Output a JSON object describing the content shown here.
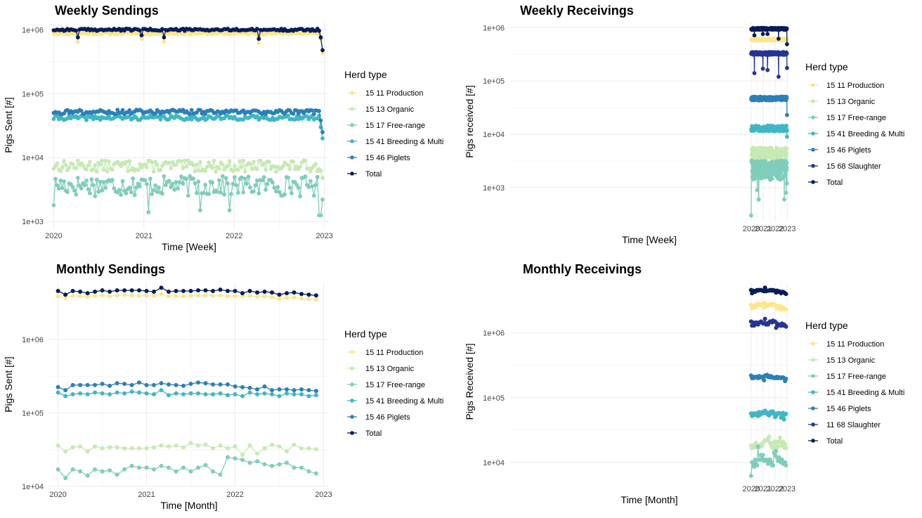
{
  "colors": {
    "15 11 Production": "#fce68a",
    "15 13 Organic": "#c7e9b4",
    "15 17 Free-range": "#7fcdbb",
    "15 41 Breeding & Multi": "#41b6c4",
    "15 46 Piglets": "#2c7fb8",
    "15 68 Slaughter": "#253494",
    "11 68 Slaughter": "#253494",
    "Total": "#081d58"
  },
  "chart_data": [
    {
      "type": "line",
      "title": "Weekly Sendings",
      "xlabel": "Time [Week]",
      "ylabel": "Pigs Sent [#]",
      "log_y": true,
      "ylim": [
        800,
        1300000
      ],
      "yticks": [
        1000,
        10000,
        100000,
        1000000
      ],
      "ytick_labels": [
        "1e+03",
        "1e+04",
        "1e+05",
        "1e+06"
      ],
      "xlim": [
        2019.95,
        2023.05
      ],
      "xticks": [
        2020,
        2021,
        2022,
        2023
      ],
      "xtick_labels": [
        "2020",
        "2021",
        "2022",
        "2023"
      ],
      "x_start": 2020.0,
      "x_end": 2022.98,
      "n_points": 157,
      "legend_title": "Herd type",
      "legend_position": "right",
      "series": [
        {
          "name": "15 11 Production",
          "level": 880000,
          "spread": 0.04,
          "dips": [
            [
              2020.27,
              650000
            ],
            [
              2020.98,
              720000
            ],
            [
              2021.23,
              650000
            ],
            [
              2022.27,
              620000
            ]
          ],
          "end": [
            [
              2022.96,
              720000
            ],
            [
              2022.98,
              430000
            ]
          ],
          "seed": 11
        },
        {
          "name": "15 13 Organic",
          "level": 7500,
          "spread": 0.2,
          "dips": [],
          "end": [
            [
              2022.98,
              4800
            ]
          ],
          "seed": 13
        },
        {
          "name": "15 17 Free-range",
          "level": 3800,
          "spread": 0.35,
          "dips": [
            [
              2020.0,
              1800
            ],
            [
              2021.05,
              1400
            ],
            [
              2021.62,
              1500
            ],
            [
              2021.95,
              1500
            ],
            [
              2022.95,
              1250
            ]
          ],
          "end": [
            [
              2022.98,
              2200
            ]
          ],
          "seed": 17
        },
        {
          "name": "15 41 Breeding & Multi",
          "level": 42000,
          "spread": 0.08,
          "dips": [],
          "end": [
            [
              2022.96,
              30000
            ],
            [
              2022.98,
              20000
            ]
          ],
          "seed": 41
        },
        {
          "name": "15 46 Piglets",
          "level": 52000,
          "spread": 0.08,
          "dips": [],
          "end": [
            [
              2022.96,
              38000
            ],
            [
              2022.98,
              25000
            ]
          ],
          "seed": 46
        },
        {
          "name": "Total",
          "level": 1000000,
          "spread": 0.04,
          "dips": [
            [
              2020.27,
              760000
            ],
            [
              2020.98,
              820000
            ],
            [
              2021.23,
              760000
            ],
            [
              2022.27,
              720000
            ]
          ],
          "end": [
            [
              2022.96,
              760000
            ],
            [
              2022.98,
              480000
            ]
          ],
          "seed": 99
        }
      ]
    },
    {
      "type": "line",
      "title": "Weekly Receivings",
      "xlabel": "Time [Week]",
      "ylabel": "Pigs received [#]",
      "log_y": true,
      "ylim": [
        240,
        1250000
      ],
      "yticks": [
        1000,
        10000,
        100000,
        1000000
      ],
      "ytick_labels": [
        "1e+03",
        "1e+04",
        "1e+05",
        "1e+06"
      ],
      "xlim": [
        1999.95,
        2023.1
      ],
      "xticks": [
        2020,
        2021,
        2022,
        2023
      ],
      "xtick_labels": [
        "2020",
        "2021",
        "2022",
        "2023"
      ],
      "x_start": 2020.0,
      "x_end": 2022.98,
      "n_points": 157,
      "legend_title": "Herd type",
      "legend_position": "right",
      "series": [
        {
          "name": "15 11 Production",
          "level": 600000,
          "spread": 0.04,
          "dips": [],
          "end": [
            [
              2022.98,
              330000
            ]
          ],
          "seed": 111
        },
        {
          "name": "15 13 Organic",
          "level": 4000,
          "spread": 0.4,
          "dips": [],
          "end": [
            [
              2022.98,
              2400
            ]
          ],
          "seed": 113
        },
        {
          "name": "15 17 Free-range",
          "level": 2300,
          "spread": 0.4,
          "dips": [
            [
              2020.0,
              300
            ],
            [
              2020.5,
              900
            ],
            [
              2020.62,
              600
            ],
            [
              2022.75,
              600
            ],
            [
              2022.9,
              800
            ]
          ],
          "end": [
            [
              2022.98,
              1200
            ]
          ],
          "seed": 117
        },
        {
          "name": "15 41 Breeding & Multi",
          "level": 13000,
          "spread": 0.12,
          "dips": [],
          "end": [
            [
              2022.98,
              9000
            ]
          ],
          "seed": 141
        },
        {
          "name": "15 46 Piglets",
          "level": 47000,
          "spread": 0.08,
          "dips": [],
          "end": [
            [
              2022.98,
              23000
            ]
          ],
          "seed": 146
        },
        {
          "name": "15 68 Slaughter",
          "level": 330000,
          "spread": 0.06,
          "dips": [
            [
              2020.27,
              140000
            ],
            [
              2020.98,
              170000
            ],
            [
              2021.35,
              160000
            ],
            [
              2022.27,
              120000
            ]
          ],
          "end": [
            [
              2022.98,
              175000
            ]
          ],
          "seed": 168
        },
        {
          "name": "Total",
          "level": 950000,
          "spread": 0.04,
          "dips": [
            [
              2020.27,
              720000
            ],
            [
              2020.98,
              760000
            ],
            [
              2021.35,
              760000
            ],
            [
              2022.27,
              620000
            ]
          ],
          "end": [
            [
              2022.98,
              490000
            ]
          ],
          "seed": 199
        }
      ]
    },
    {
      "type": "line",
      "title": "Monthly Sendings",
      "xlabel": "Time [Month]",
      "ylabel": "Pigs Sent [#]",
      "log_y": true,
      "ylim": [
        10000,
        6000000
      ],
      "yticks": [
        10000,
        100000,
        1000000
      ],
      "ytick_labels": [
        "1e+04",
        "1e+05",
        "1e+06"
      ],
      "xlim": [
        2019.9,
        2023.06
      ],
      "xticks": [
        2020,
        2021,
        2022,
        2023
      ],
      "xtick_labels": [
        "2020",
        "2021",
        "2022",
        "2023"
      ],
      "legend_title": "Herd type",
      "legend_position": "right",
      "series": [
        {
          "name": "15 11 Production",
          "values": [
            3900000,
            3700000,
            3950000,
            3900000,
            3850000,
            3950000,
            4000000,
            3900000,
            4000000,
            4050000,
            4000000,
            3950000,
            4000000,
            3950000,
            4200000,
            3900000,
            3950000,
            3900000,
            3950000,
            4000000,
            4000000,
            3950000,
            4000000,
            3900000,
            3950000,
            3900000,
            3950000,
            3850000,
            3900000,
            3800000,
            3600000,
            3700000,
            3750000,
            3650000,
            3600000,
            3500000
          ]
        },
        {
          "name": "15 13 Organic",
          "values": [
            36000,
            30000,
            34000,
            35000,
            30000,
            35000,
            33000,
            34000,
            34000,
            33000,
            33000,
            33000,
            33000,
            34000,
            36000,
            35000,
            36000,
            34000,
            39000,
            36000,
            37000,
            33000,
            36000,
            33000,
            35000,
            27000,
            36000,
            28000,
            33000,
            37000,
            35000,
            30000,
            37000,
            33000,
            33000,
            32000
          ]
        },
        {
          "name": "15 17 Free-range",
          "values": [
            17000,
            13000,
            17000,
            16000,
            14000,
            17000,
            16000,
            16500,
            14500,
            17000,
            19000,
            18000,
            18000,
            17000,
            19000,
            18000,
            16000,
            18000,
            16000,
            18000,
            19500,
            16000,
            14500,
            25000,
            24000,
            23000,
            21000,
            22000,
            20000,
            19000,
            20000,
            21000,
            18000,
            18000,
            16000,
            15000
          ]
        },
        {
          "name": "15 41 Breeding & Multi",
          "values": [
            190000,
            170000,
            180000,
            185000,
            180000,
            190000,
            185000,
            180000,
            190000,
            185000,
            195000,
            190000,
            185000,
            180000,
            205000,
            175000,
            185000,
            180000,
            185000,
            185000,
            180000,
            180000,
            185000,
            175000,
            180000,
            170000,
            190000,
            180000,
            185000,
            180000,
            170000,
            185000,
            180000,
            180000,
            170000,
            175000
          ]
        },
        {
          "name": "15 46 Piglets",
          "values": [
            225000,
            205000,
            240000,
            240000,
            240000,
            240000,
            250000,
            235000,
            255000,
            250000,
            240000,
            260000,
            240000,
            240000,
            255000,
            245000,
            240000,
            235000,
            250000,
            260000,
            255000,
            245000,
            245000,
            245000,
            230000,
            225000,
            220000,
            210000,
            230000,
            205000,
            210000,
            210000,
            205000,
            210000,
            205000,
            200000
          ]
        },
        {
          "name": "Total",
          "values": [
            4600000,
            4100000,
            4600000,
            4500000,
            4300000,
            4500000,
            4700000,
            4500000,
            4700000,
            4700000,
            4700000,
            4700000,
            4600000,
            4500000,
            5100000,
            4500000,
            4600000,
            4600000,
            4600000,
            4700000,
            4700000,
            4600000,
            4800000,
            4600000,
            4600000,
            4300000,
            4600000,
            4400000,
            4500000,
            4400000,
            4100000,
            4300000,
            4400000,
            4200000,
            4100000,
            4000000
          ]
        }
      ]
    },
    {
      "type": "line",
      "title": "Monthly Receivings",
      "xlabel": "Time [Month]",
      "ylabel": "Pigs Received [#]",
      "log_y": true,
      "ylim": [
        5200,
        6000000
      ],
      "yticks": [
        10000,
        100000,
        1000000
      ],
      "ytick_labels": [
        "1e+04",
        "1e+05",
        "1e+06"
      ],
      "xlim": [
        1999.93,
        2023.12
      ],
      "xticks": [
        2020,
        2021,
        2022,
        2023
      ],
      "xtick_labels": [
        "2020",
        "2021",
        "2022",
        "2023"
      ],
      "legend_title": "Herd type",
      "legend_position": "right",
      "series": [
        {
          "name": "15 11 Production",
          "values": [
            2700000,
            2400000,
            2600000,
            2600000,
            2500000,
            2700000,
            2800000,
            2700000,
            2800000,
            2700000,
            2700000,
            2800000,
            2600000,
            2500000,
            2900000,
            2600000,
            2700000,
            2600000,
            2700000,
            2800000,
            2800000,
            2700000,
            2800000,
            2700000,
            2700000,
            2600000,
            2400000,
            2600000,
            2500000,
            2600000,
            2300000,
            2500000,
            2400000,
            2400000,
            2300000,
            2300000
          ]
        },
        {
          "name": "15 13 Organic",
          "values": [
            18000,
            16500,
            18000,
            18500,
            17000,
            20000,
            18500,
            18000,
            17000,
            18000,
            19000,
            18000,
            20000,
            21000,
            22000,
            22000,
            22000,
            23000,
            25000,
            20000,
            19000,
            17000,
            20000,
            15000,
            21000,
            17000,
            21000,
            17500,
            21000,
            24000,
            20000,
            18000,
            21000,
            17000,
            19000,
            16500
          ]
        },
        {
          "name": "15 17 Free-range",
          "values": [
            6200,
            10000,
            9500,
            8500,
            11000,
            9500,
            9000,
            17500,
            11000,
            11000,
            13000,
            11000,
            13000,
            10500,
            11000,
            11000,
            10500,
            9500,
            11000,
            11000,
            10000,
            9000,
            9000,
            14000,
            13000,
            15000,
            12000,
            10500,
            12000,
            11000,
            10000,
            11000,
            9500,
            9500,
            10000,
            9000
          ]
        },
        {
          "name": "15 41 Breeding & Multi",
          "values": [
            57000,
            52000,
            57000,
            57000,
            54000,
            57000,
            56000,
            52000,
            60000,
            54000,
            58000,
            60000,
            57000,
            58000,
            63000,
            60000,
            56000,
            58000,
            53000,
            57000,
            61000,
            57000,
            61000,
            56000,
            50000,
            52000,
            57000,
            56000,
            58000,
            57000,
            49000,
            53000,
            58000,
            46000,
            55000,
            56000
          ]
        },
        {
          "name": "15 46 Piglets",
          "values": [
            220000,
            200000,
            200000,
            210000,
            205000,
            210000,
            210000,
            200000,
            215000,
            205000,
            210000,
            210000,
            200000,
            185000,
            220000,
            215000,
            225000,
            210000,
            215000,
            205000,
            215000,
            205000,
            205000,
            200000,
            205000,
            200000,
            210000,
            200000,
            205000,
            205000,
            200000,
            205000,
            205000,
            200000,
            180000,
            195000
          ]
        },
        {
          "name": "11 68 Slaughter",
          "values": [
            1500000,
            1300000,
            1450000,
            1300000,
            1350000,
            1450000,
            1400000,
            1350000,
            1450000,
            1450000,
            1500000,
            1450000,
            1400000,
            1400000,
            1650000,
            1350000,
            1400000,
            1350000,
            1450000,
            1500000,
            1500000,
            1450000,
            1550000,
            1500000,
            1500000,
            1200000,
            1400000,
            1300000,
            1350000,
            1300000,
            1300000,
            1400000,
            1300000,
            1350000,
            1300000,
            1250000
          ]
        },
        {
          "name": "Total",
          "values": [
            4600000,
            4100000,
            4500000,
            4400000,
            4300000,
            4500000,
            4600000,
            4500000,
            4600000,
            4600000,
            4600000,
            4500000,
            4500000,
            4400000,
            5000000,
            4400000,
            4500000,
            4500000,
            4500000,
            4600000,
            4600000,
            4500000,
            4600000,
            4500000,
            4500000,
            4200000,
            4500000,
            4300000,
            4400000,
            4300000,
            4100000,
            4300000,
            4300000,
            4200000,
            4100000,
            4000000
          ]
        }
      ]
    }
  ]
}
